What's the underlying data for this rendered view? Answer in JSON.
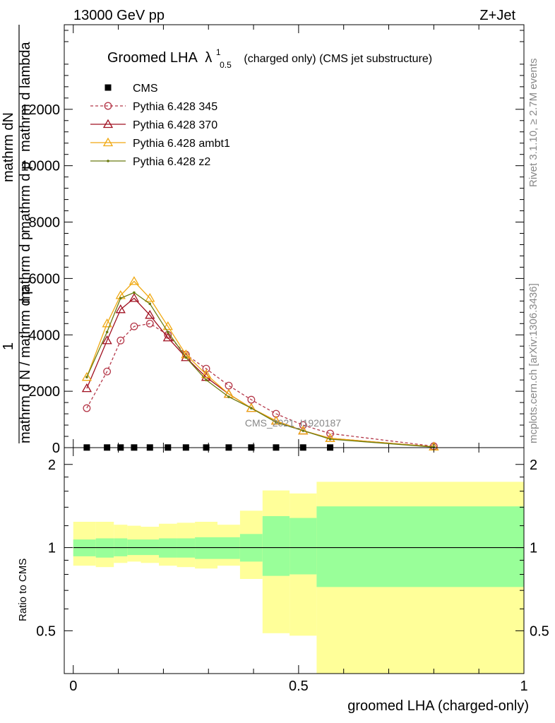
{
  "header": {
    "left": "13000 GeV pp",
    "right": "Z+Jet"
  },
  "side_labels": {
    "rivet": "Rivet 3.1.10, ≥ 2.7M events",
    "mcplots": "mcplots.cern.ch [arXiv:1306.3436]"
  },
  "watermark": "CMS_2021_I1920187",
  "chart_data": [
    {
      "type": "line",
      "title": "Groomed LHA",
      "title_symbol": "λ",
      "title_sup": "1",
      "title_sub": "0.5",
      "title_suffix": "(charged only) (CMS jet substructure)",
      "ylabel_lines": [
        "1",
        "mathrm d N / mathrm d p",
        "mathrm d p",
        "mathrm d p",
        "mathrm dN",
        "mathrm d lambda"
      ],
      "ylabel_full": "1 / mathrm N  mathrm d N / mathrm d p_T mathrm d lambda",
      "ylim": [
        0,
        15000
      ],
      "yticks": [
        0,
        2000,
        4000,
        6000,
        8000,
        10000,
        12000
      ],
      "ytick_labels": [
        "0",
        "2000",
        "4000",
        "6000",
        "8000",
        "10000",
        "12000"
      ],
      "xlim": [
        -0.02,
        1.0
      ],
      "legend_position": "top-left",
      "series": [
        {
          "name": "CMS",
          "color": "#000000",
          "marker": "square",
          "x": [
            0.03,
            0.075,
            0.105,
            0.135,
            0.17,
            0.21,
            0.25,
            0.295,
            0.345,
            0.395,
            0.45,
            0.51,
            0.57
          ],
          "y": [
            5,
            5,
            5,
            5,
            5,
            5,
            5,
            5,
            5,
            5,
            5,
            5,
            5
          ]
        },
        {
          "name": "Pythia 6.428 345",
          "color": "#b5394a",
          "marker": "circle",
          "dash": true,
          "x": [
            0.03,
            0.075,
            0.105,
            0.135,
            0.17,
            0.21,
            0.25,
            0.295,
            0.345,
            0.395,
            0.45,
            0.51,
            0.57,
            0.8
          ],
          "y": [
            1400,
            2700,
            3800,
            4300,
            4400,
            4000,
            3300,
            2800,
            2200,
            1700,
            1200,
            800,
            500,
            50
          ]
        },
        {
          "name": "Pythia 6.428 370",
          "color": "#a01020",
          "marker": "triangle",
          "x": [
            0.03,
            0.075,
            0.105,
            0.135,
            0.17,
            0.21,
            0.25,
            0.295,
            0.345,
            0.395,
            0.45,
            0.51,
            0.57,
            0.8
          ],
          "y": [
            2100,
            3800,
            4900,
            5300,
            4700,
            3900,
            3200,
            2500,
            1900,
            1400,
            950,
            600,
            330,
            30
          ]
        },
        {
          "name": "Pythia 6.428 ambt1",
          "color": "#f0a810",
          "marker": "triangle",
          "x": [
            0.03,
            0.075,
            0.105,
            0.135,
            0.17,
            0.21,
            0.25,
            0.295,
            0.345,
            0.395,
            0.45,
            0.51,
            0.57,
            0.8
          ],
          "y": [
            2500,
            4400,
            5400,
            5900,
            5300,
            4300,
            3300,
            2600,
            1900,
            1400,
            950,
            600,
            330,
            30
          ]
        },
        {
          "name": "Pythia 6.428 z2",
          "color": "#6b7a10",
          "marker": "dot",
          "x": [
            0.03,
            0.075,
            0.105,
            0.135,
            0.17,
            0.21,
            0.25,
            0.295,
            0.345,
            0.395,
            0.45,
            0.51,
            0.57,
            0.8
          ],
          "y": [
            2500,
            4100,
            5300,
            5500,
            5100,
            4100,
            3200,
            2400,
            1800,
            1400,
            900,
            600,
            300,
            20
          ]
        }
      ]
    },
    {
      "type": "area",
      "ylabel": "Ratio to CMS",
      "xlabel": "groomed LHA (charged-only)",
      "xlim": [
        -0.02,
        1.0
      ],
      "ylim": [
        0.35,
        2.3
      ],
      "xticks": [
        0,
        0.5,
        1
      ],
      "xtick_labels": [
        "0",
        "0.5",
        "1"
      ],
      "yticks": [
        0.5,
        1,
        2
      ],
      "ytick_labels": [
        "0.5",
        "1",
        "2"
      ],
      "bins": [
        0,
        0.05,
        0.09,
        0.12,
        0.15,
        0.19,
        0.23,
        0.27,
        0.32,
        0.37,
        0.42,
        0.48,
        0.54,
        1.0
      ],
      "stat_band_low": [
        0.93,
        0.92,
        0.93,
        0.94,
        0.94,
        0.92,
        0.92,
        0.91,
        0.91,
        0.89,
        0.79,
        0.8,
        0.72
      ],
      "stat_band_high": [
        1.07,
        1.08,
        1.08,
        1.07,
        1.07,
        1.08,
        1.08,
        1.09,
        1.09,
        1.12,
        1.3,
        1.28,
        1.41
      ],
      "total_band_low": [
        0.86,
        0.85,
        0.88,
        0.89,
        0.88,
        0.86,
        0.85,
        0.84,
        0.86,
        0.77,
        0.49,
        0.48,
        0.35
      ],
      "total_band_high": [
        1.24,
        1.24,
        1.21,
        1.2,
        1.19,
        1.22,
        1.23,
        1.24,
        1.21,
        1.36,
        1.61,
        1.57,
        1.73
      ],
      "stat_color": "#99ff99",
      "total_color": "#ffff99"
    }
  ]
}
